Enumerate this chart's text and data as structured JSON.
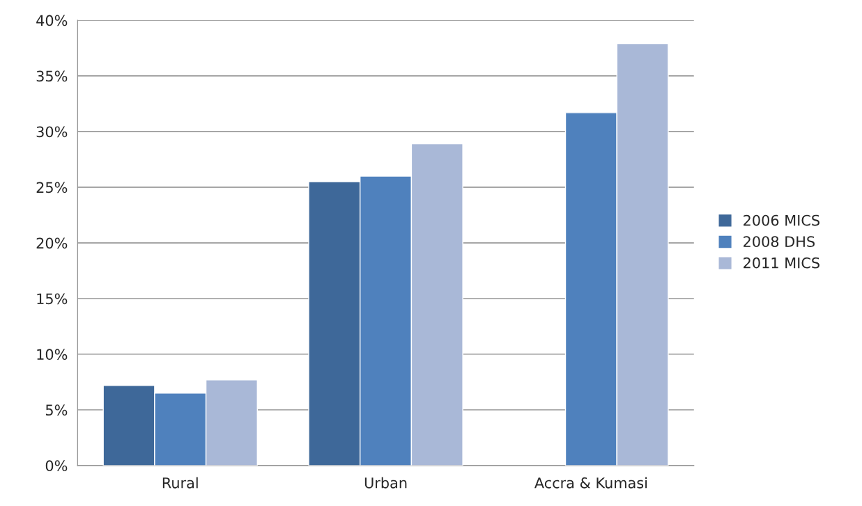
{
  "chart_data": {
    "type": "bar",
    "categories": [
      "Rural",
      "Urban",
      "Accra & Kumasi"
    ],
    "series": [
      {
        "name": "2006 MICS",
        "color": "#3e6899",
        "values": [
          7.2,
          25.5,
          null
        ]
      },
      {
        "name": "2008 DHS",
        "color": "#4f81bd",
        "values": [
          6.5,
          26.0,
          31.7
        ]
      },
      {
        "name": "2011 MICS",
        "color": "#a9b8d7",
        "values": [
          7.7,
          28.9,
          37.9
        ]
      }
    ],
    "ylim": [
      0,
      40
    ],
    "yticks": [
      {
        "value": 0,
        "label": "0%"
      },
      {
        "value": 5,
        "label": "5%"
      },
      {
        "value": 10,
        "label": "10%"
      },
      {
        "value": 15,
        "label": "15%"
      },
      {
        "value": 20,
        "label": "20%"
      },
      {
        "value": 25,
        "label": "25%"
      },
      {
        "value": 30,
        "label": "30%"
      },
      {
        "value": 35,
        "label": "35%"
      },
      {
        "value": 40,
        "label": "40%"
      }
    ],
    "grid": "y",
    "legend": "right"
  }
}
